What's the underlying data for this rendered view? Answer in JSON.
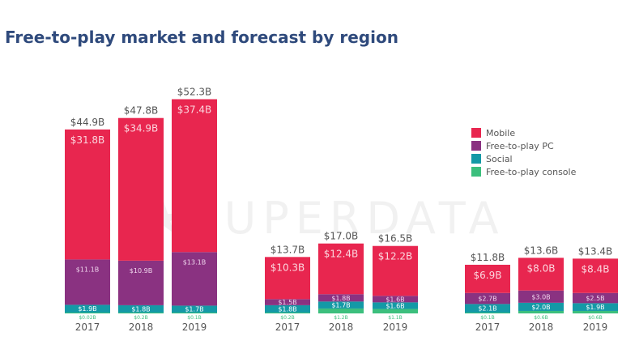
{
  "title": "Free-to-play market and forecast by region",
  "watermark": "★SUPERDATA",
  "colors": {
    "mobile": "#e8264f",
    "pc": "#8a3281",
    "social": "#1499a6",
    "console": "#3cbf7d",
    "text": "#555555",
    "title": "#2f4a7c"
  },
  "chart_data": {
    "type": "bar",
    "stacked": true,
    "legend_position": "right",
    "grid": false,
    "series_names": [
      "Mobile",
      "Free-to-play PC",
      "Social",
      "Free-to-play console"
    ],
    "groups": [
      {
        "categories": [
          "2017",
          "2018",
          "2019"
        ],
        "totals": [
          "$44.9B",
          "$47.8B",
          "$52.3B"
        ],
        "total_values": [
          44.9,
          47.8,
          52.3
        ],
        "mobile": [
          31.8,
          34.9,
          37.4
        ],
        "pc": [
          11.1,
          10.9,
          13.1
        ],
        "social": [
          1.9,
          1.8,
          1.7
        ],
        "console": [
          0.02,
          0.2,
          0.1
        ],
        "mobile_labels": [
          "$31.8B",
          "$34.9B",
          "$37.4B"
        ],
        "pc_labels": [
          "$11.1B",
          "$10.9B",
          "$13.1B"
        ],
        "social_labels": [
          "$1.9B",
          "$1.8B",
          "$1.7B"
        ],
        "console_labels": [
          "$0.02B",
          "$0.2B",
          "$0.1B"
        ]
      },
      {
        "categories": [
          "2017",
          "2018",
          "2019"
        ],
        "totals": [
          "$13.7B",
          "$17.0B",
          "$16.5B"
        ],
        "total_values": [
          13.7,
          17.0,
          16.5
        ],
        "mobile": [
          10.3,
          12.4,
          12.2
        ],
        "pc": [
          1.5,
          1.8,
          1.6
        ],
        "social": [
          1.8,
          1.7,
          1.6
        ],
        "console": [
          0.2,
          1.2,
          1.1
        ],
        "mobile_labels": [
          "$10.3B",
          "$12.4B",
          "$12.2B"
        ],
        "pc_labels": [
          "$1.5B",
          "$1.8B",
          "$1.6B"
        ],
        "social_labels": [
          "$1.8B",
          "$1.7B",
          "$1.6B"
        ],
        "console_labels": [
          "$0.2B",
          "$1.2B",
          "$1.1B"
        ]
      },
      {
        "categories": [
          "2017",
          "2018",
          "2019"
        ],
        "totals": [
          "$11.8B",
          "$13.6B",
          "$13.4B"
        ],
        "total_values": [
          11.8,
          13.6,
          13.4
        ],
        "mobile": [
          6.9,
          8.0,
          8.4
        ],
        "pc": [
          2.7,
          3.0,
          2.5
        ],
        "social": [
          2.1,
          2.0,
          1.9
        ],
        "console": [
          0.1,
          0.6,
          0.6
        ],
        "mobile_labels": [
          "$6.9B",
          "$8.0B",
          "$8.4B"
        ],
        "pc_labels": [
          "$2.7B",
          "$3.0B",
          "$2.5B"
        ],
        "social_labels": [
          "$2.1B",
          "$2.0B",
          "$1.9B"
        ],
        "console_labels": [
          "$0.1B",
          "$0.6B",
          "$0.6B"
        ]
      }
    ]
  }
}
